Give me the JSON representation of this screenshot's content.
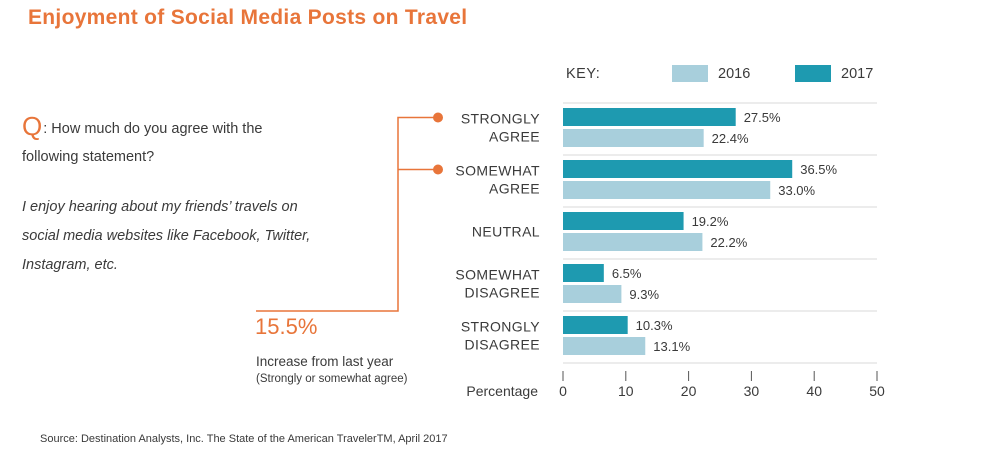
{
  "title": "Enjoyment of Social Media Posts on Travel",
  "question": {
    "letter": "Q",
    "text": ": How much do you agree with the following statement?",
    "statement": "I enjoy hearing about my friends’ travels on social media websites like Facebook, Twitter, Instagram, etc."
  },
  "stat": {
    "value": "15.5%",
    "label": "Increase from last year",
    "note": "(Strongly or somewhat agree)"
  },
  "source": "Source: Destination Analysts, Inc.  The State of the American TravelerTM, April 2017",
  "colors": {
    "orange": "#e8753a",
    "series_2017": "#1e9ab0",
    "series_2016": "#a8cfdc",
    "grid": "#d8d8d8"
  },
  "chart_data": {
    "type": "bar",
    "orientation": "horizontal",
    "key_label": "KEY:",
    "categories": [
      [
        "STRONGLY",
        "AGREE"
      ],
      [
        "SOMEWHAT",
        "AGREE"
      ],
      [
        "NEUTRAL"
      ],
      [
        "SOMEWHAT",
        "DISAGREE"
      ],
      [
        "STRONGLY",
        "DISAGREE"
      ]
    ],
    "series": [
      {
        "name": "2017",
        "values": [
          27.5,
          36.5,
          19.2,
          6.5,
          10.3
        ],
        "labels": [
          "27.5%",
          "36.5%",
          "19.2%",
          "6.5%",
          "10.3%"
        ]
      },
      {
        "name": "2016",
        "values": [
          22.4,
          33.0,
          22.2,
          9.3,
          13.1
        ],
        "labels": [
          "22.4%",
          "33.0%",
          "22.2%",
          "9.3%",
          "13.1%"
        ]
      }
    ],
    "xlabel": "Percentage",
    "xlim": [
      0,
      50
    ],
    "xticks": [
      0,
      10,
      20,
      30,
      40,
      50
    ],
    "legend": [
      {
        "name": "2016"
      },
      {
        "name": "2017"
      }
    ],
    "highlighted_categories": [
      0,
      1
    ]
  }
}
